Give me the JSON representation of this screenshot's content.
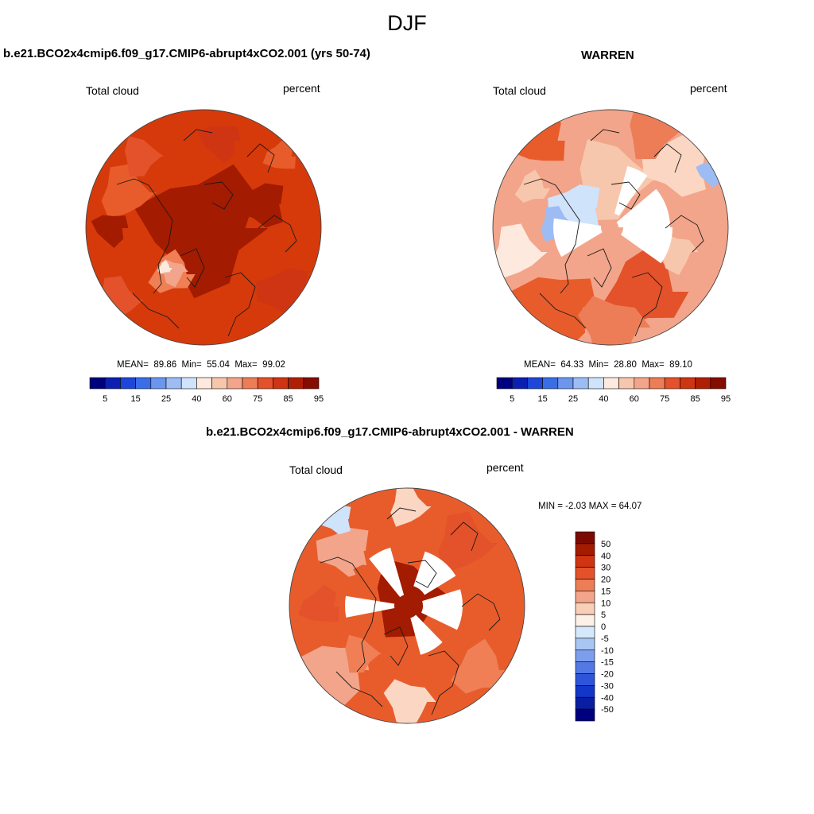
{
  "figure": {
    "title": "DJF"
  },
  "panels": {
    "model": {
      "title": "b.e21.BCO2x4cmip6.f09_g17.CMIP6-abrupt4xCO2.001 (yrs 50-74)",
      "variable": "Total cloud",
      "units": "percent",
      "stats": {
        "mean_label": "MEAN=",
        "mean": "89.86",
        "min_label": "Min=",
        "min": "55.04",
        "max_label": "Max=",
        "max": "99.02"
      },
      "dominant_colors": [
        "#a31b00",
        "#d63a0a",
        "#e85c2c",
        "#f2a58a"
      ]
    },
    "obs": {
      "title": "WARREN",
      "variable": "Total cloud",
      "units": "percent",
      "stats": {
        "mean_label": "MEAN=",
        "mean": "64.33",
        "min_label": "Min=",
        "min": "28.80",
        "max_label": "Max=",
        "max": "89.10"
      },
      "dominant_colors": [
        "#fbd6c3",
        "#f2a58a",
        "#e85c2c",
        "#bcd5f5"
      ]
    },
    "diff": {
      "title": "b.e21.BCO2x4cmip6.f09_g17.CMIP6-abrupt4xCO2.001 - WARREN",
      "variable": "Total cloud",
      "units": "percent",
      "minmax": "MIN =  -2.03 MAX =  64.07",
      "dominant_colors": [
        "#e85c2c",
        "#f07f55",
        "#f2a58a",
        "#a31b00"
      ]
    }
  },
  "colorbar_abs": {
    "colors": [
      "#00007f",
      "#0b1fb0",
      "#1e46d8",
      "#3a6de6",
      "#6c96ee",
      "#9dbcf4",
      "#cfe3fb",
      "#fde9dd",
      "#f7c7ad",
      "#f2a58a",
      "#ec7d57",
      "#e3522a",
      "#cf3512",
      "#ae1f04",
      "#850c00"
    ],
    "labels": [
      "5",
      "15",
      "25",
      "40",
      "60",
      "75",
      "85",
      "95"
    ]
  },
  "colorbar_diff": {
    "colors": [
      "#7b0b00",
      "#a31b00",
      "#cf3512",
      "#e3522a",
      "#ec7d57",
      "#f2a58a",
      "#f9cfb8",
      "#fdf0e6",
      "#d6e8fb",
      "#a9c6f3",
      "#7d9eec",
      "#5478e4",
      "#2e55d9",
      "#1236c7",
      "#0a1ea3",
      "#00007f"
    ],
    "labels": [
      "50",
      "40",
      "30",
      "20",
      "15",
      "10",
      "5",
      "0",
      "-5",
      "-10",
      "-15",
      "-20",
      "-30",
      "-40",
      "-50"
    ]
  }
}
